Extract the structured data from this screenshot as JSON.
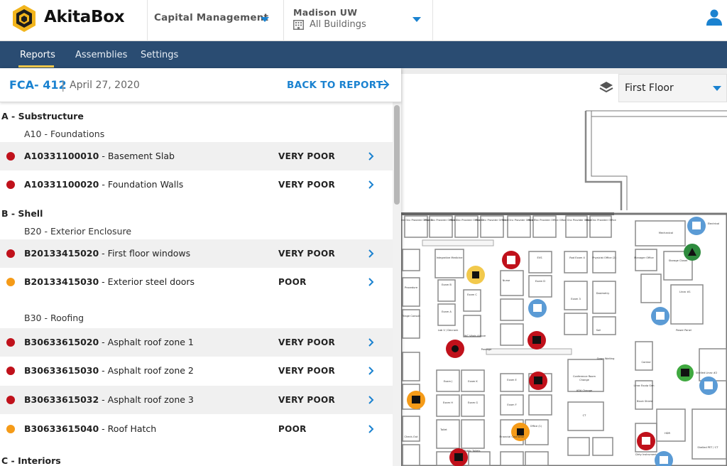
{
  "header": {
    "brand": "AkitaBox",
    "module_select": "Capital Management",
    "org_name": "Madison UW",
    "building_select": "All Buildings"
  },
  "nav": {
    "tabs": [
      {
        "label": "Reports",
        "active": true
      },
      {
        "label": "Assemblies",
        "active": false
      },
      {
        "label": "Settings",
        "active": false
      }
    ]
  },
  "panel": {
    "fca_id": "FCA- 412",
    "separator": "|",
    "date": "April 27, 2020",
    "back_label": "BACK TO REPORT",
    "sections": [
      {
        "title": "A - Substructure",
        "groups": [
          {
            "code": "A10",
            "name": "Foundations",
            "items": [
              {
                "code": "A10331100010",
                "name": "Basement Slab",
                "condition": "VERY POOR"
              },
              {
                "code": "A10331100020",
                "name": "Foundation Walls",
                "condition": "VERY POOR"
              }
            ]
          }
        ]
      },
      {
        "title": "B - Shell",
        "groups": [
          {
            "code": "B20",
            "name": "Exterior Enclosure",
            "items": [
              {
                "code": "B20133415020",
                "name": "First floor windows",
                "condition": "VERY POOR"
              },
              {
                "code": "B20133415030",
                "name": "Exterior steel doors",
                "condition": "POOR"
              }
            ]
          },
          {
            "code": "B30",
            "name": "Roofing",
            "items": [
              {
                "code": "B30633615020",
                "name": "Asphalt roof zone 1",
                "condition": "VERY POOR"
              },
              {
                "code": "B30633615030",
                "name": "Asphalt roof zone 2",
                "condition": "VERY POOR"
              },
              {
                "code": "B30633615032",
                "name": "Asphalt roof zone 3",
                "condition": "VERY POOR"
              },
              {
                "code": "B30633615040",
                "name": "Roof Hatch",
                "condition": "POOR"
              }
            ]
          }
        ]
      },
      {
        "title": "C - Interiors",
        "groups": []
      }
    ]
  },
  "map": {
    "floor_select": "First Floor",
    "room_labels": [
      "Med Onc Provider Office B",
      "Med Onc Provider Office C",
      "Med Onc Provider Office D",
      "Med Onc Provider Office E",
      "Med Onc Provider Office F",
      "Med Onc Provider Office G",
      "Rad Onc Provider Office",
      "Med Onc Provider Office",
      "Mechanical",
      "Electrical",
      "Integrative Medicine",
      "EVS",
      "Rad Exam 4",
      "Physicist Office (2)",
      "Manager Office",
      "Exam B",
      "Exam C",
      "Exam D",
      "Exam 3",
      "Dosimetry",
      "Storage Closet",
      "Linac #1",
      "Triage Consult",
      "Exam A",
      "Nurse",
      "Passage",
      "Power Panel",
      "Control",
      "Shelled Linac #2",
      "Exam J",
      "Exam K",
      "Exam H",
      "Exam G",
      "Conference Room",
      "CT",
      "HDR",
      "Shelled PET / CT",
      "Toilet",
      "Office (1)",
      "Block Shield",
      "Linac Equip Gen",
      "Dirty Instrument",
      "Check-Out",
      "Public Toilets",
      "Procedure",
      "Soil",
      "Change",
      "Gown Waiting",
      "ADA Change",
      "Lab V / Decrank",
      "WC Vitals Alcove",
      "Exam F",
      "Exam E",
      "Financial Counselor"
    ]
  },
  "colors": {
    "very_poor": "#c0111b",
    "poor": "#f59b18",
    "link": "#1a82d0",
    "nav_bg": "#2a4c72",
    "nav_active_underline": "#f2c94c",
    "brand_gold": "#f2b51d"
  },
  "icons": [
    "akitabox-logo-icon",
    "chevron-down-icon",
    "building-icon",
    "user-icon",
    "arrow-right-icon",
    "chevron-right-icon",
    "layers-icon"
  ]
}
